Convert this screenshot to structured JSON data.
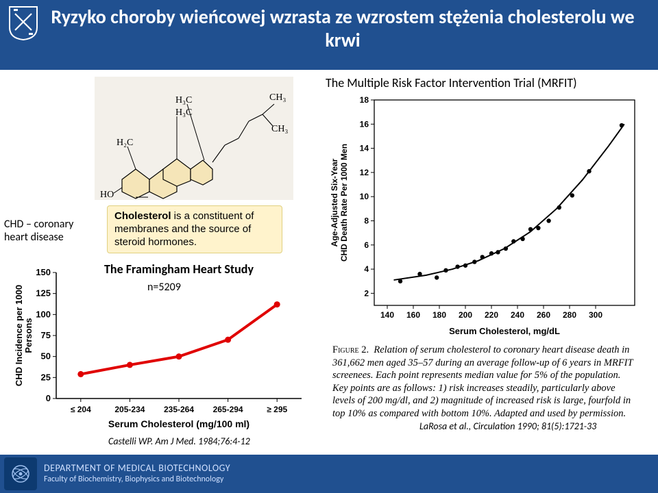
{
  "header": {
    "title": "Ryzyko choroby wieńcowej wzrasta ze wzrostem stężenia cholesterolu we krwi",
    "band_color": "#205090"
  },
  "study_label": "The Multiple Risk Factor Intervention Trial (MRFIT)",
  "molecule": {
    "labels": {
      "h3c_a": "H₃C",
      "h3c_b": "H₃C",
      "h2c": "H₂C",
      "ho": "HO",
      "ch3": "CH₃"
    }
  },
  "infobox": {
    "bold": "Cholesterol",
    "rest": " is a constituent of membranes and the source of steroid hormones."
  },
  "chd_label": {
    "line1": "CHD – coronary",
    "line2": "heart disease"
  },
  "framingham": {
    "title": "The Framingham Heart Study",
    "n_label": "n=5209",
    "y_label": "CHD Incidence per 1000 Persons",
    "x_label": "Serum Cholesterol (mg/100 ml)",
    "x_categories": [
      "≤ 204",
      "205-234",
      "235-264",
      "265-294",
      "≥ 295"
    ],
    "y_ticks": [
      0,
      25,
      50,
      75,
      100,
      125,
      150
    ],
    "line_color": "#e00000",
    "points": [
      29,
      40,
      50,
      70,
      112
    ]
  },
  "mrfit_chart": {
    "y_label": "Age-Adjusted Six-Year CHD Death Rate Per 1000 Men",
    "x_label": "Serum Cholesterol, mg/dL",
    "y_ticks": [
      2,
      4,
      6,
      8,
      10,
      12,
      14,
      16,
      18
    ],
    "x_ticks": [
      140,
      160,
      180,
      200,
      220,
      240,
      260,
      280,
      300
    ],
    "scatter": [
      [
        150,
        3.0
      ],
      [
        165,
        3.6
      ],
      [
        178,
        3.3
      ],
      [
        185,
        3.9
      ],
      [
        194,
        4.2
      ],
      [
        200,
        4.3
      ],
      [
        207,
        4.6
      ],
      [
        213,
        5.0
      ],
      [
        220,
        5.3
      ],
      [
        225,
        5.4
      ],
      [
        231,
        5.7
      ],
      [
        237,
        6.3
      ],
      [
        244,
        6.5
      ],
      [
        250,
        7.3
      ],
      [
        256,
        7.4
      ],
      [
        264,
        8.0
      ],
      [
        272,
        9.1
      ],
      [
        282,
        10.1
      ],
      [
        295,
        12.1
      ],
      [
        320,
        15.9
      ]
    ],
    "curve": [
      [
        145,
        3.1
      ],
      [
        170,
        3.5
      ],
      [
        190,
        4.0
      ],
      [
        210,
        4.7
      ],
      [
        230,
        5.7
      ],
      [
        250,
        7.1
      ],
      [
        270,
        9.0
      ],
      [
        290,
        11.4
      ],
      [
        310,
        14.2
      ],
      [
        322,
        16.0
      ]
    ]
  },
  "caption_right": "FIGURE 2.   Relation of serum cholesterol to coronary heart disease death in 361,662 men aged 35–57 during an average follow-up of 6 years in MRFIT screenees. Each point represents median value for 5% of the population. Key points are as follows: 1) risk increases steadily, particularly above levels of 200 mg/dl, and 2) magnitude of increased risk is large, fourfold in top 10% as compared with bottom 10%. Adapted and used by permission.",
  "cite_left": "Castelli WP. Am J Med. 1984;76:4-12",
  "cite_right": "LaRosa et al., Circulation 1990; 81(5):1721-33",
  "footer": {
    "line1": "DEPARTMENT OF MEDICAL BIOTECHNOLOGY",
    "line2": "Faculty of Biochemistry, Biophysics and Biotechnology"
  }
}
